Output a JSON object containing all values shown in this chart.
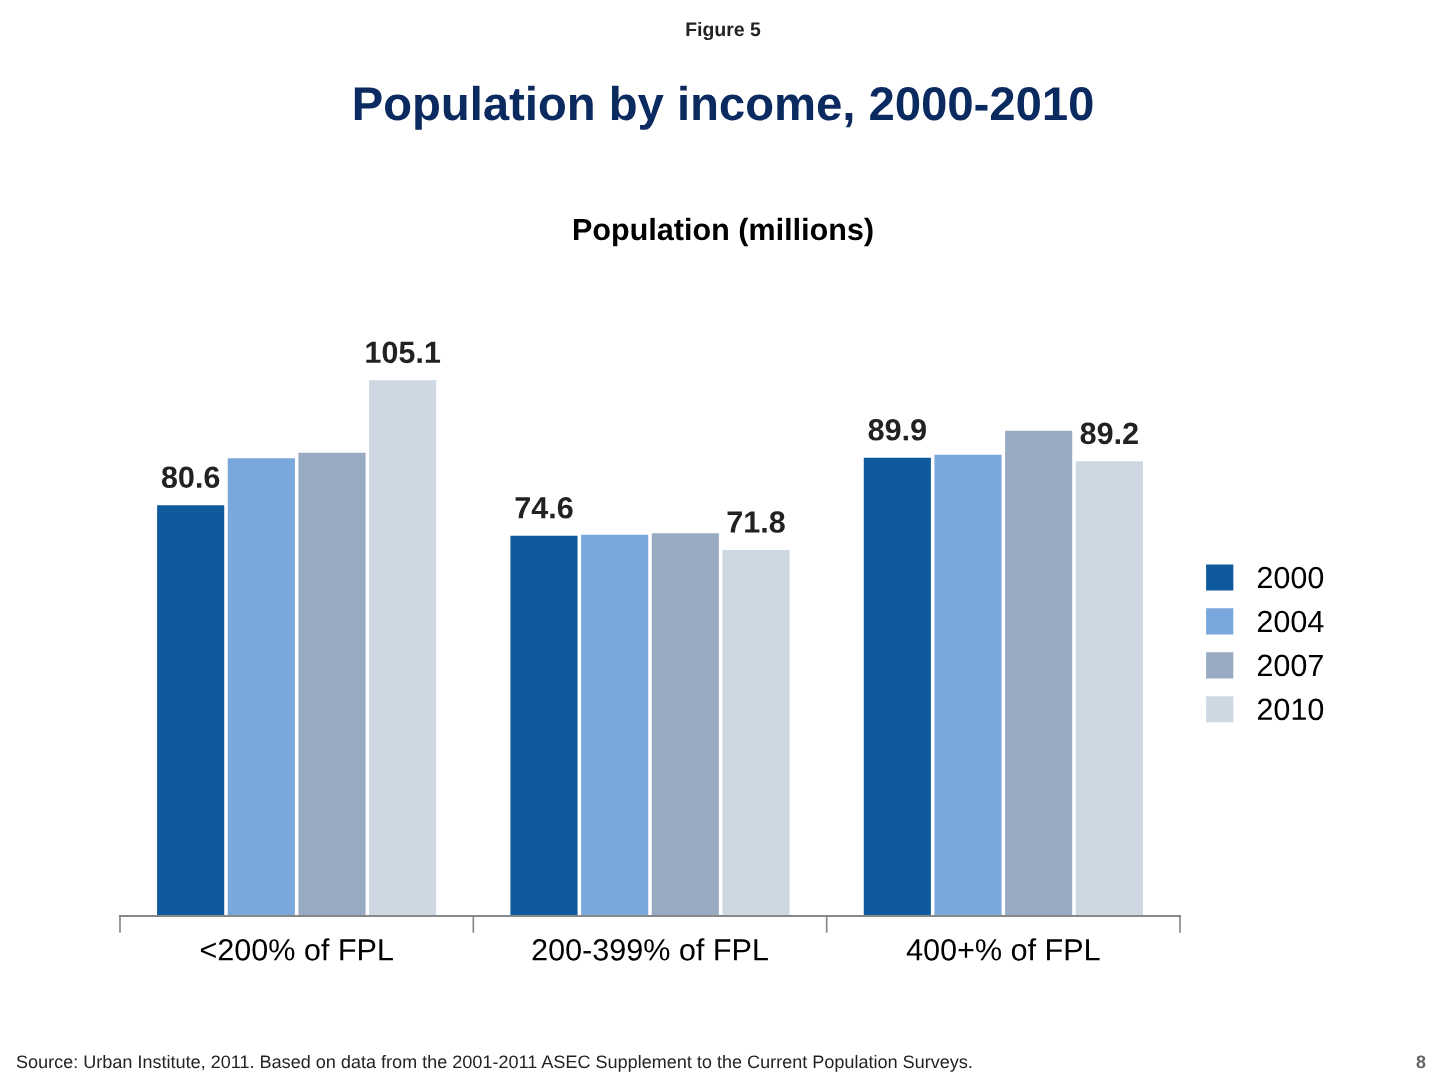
{
  "chart_data": {
    "type": "bar",
    "title": "Population by income, 2000-2010",
    "subtitle": "Population (millions)",
    "annotations": [
      "Figure 5",
      "Source: Urban Institute, 2011. Based on data from the 2001-2011 ASEC Supplement to the Current Population Surveys.",
      "8"
    ],
    "categories": [
      "<200% of FPL",
      "200-399% of FPL",
      "400+% of FPL"
    ],
    "tick_labels": "x",
    "legend": "right",
    "grid": false,
    "series": [
      {
        "name": "2000",
        "color": "#0e5a9c",
        "values": [
          80.6,
          74.6,
          89.9
        ],
        "value_labels": [
          "80.6",
          "74.6",
          "89.9"
        ]
      },
      {
        "name": "2004",
        "color": "#7aa7dc",
        "values": [
          89.8,
          74.8,
          90.5
        ],
        "value_labels": [
          null,
          null,
          null
        ]
      },
      {
        "name": "2007",
        "color": "#98abc2",
        "values": [
          90.9,
          75.1,
          95.2
        ],
        "value_labels": [
          null,
          null,
          null
        ]
      },
      {
        "name": "2010",
        "color": "#cdd8e3",
        "values": [
          105.1,
          71.8,
          89.2
        ],
        "value_labels": [
          "105.1",
          "71.8",
          "89.2"
        ]
      }
    ]
  }
}
